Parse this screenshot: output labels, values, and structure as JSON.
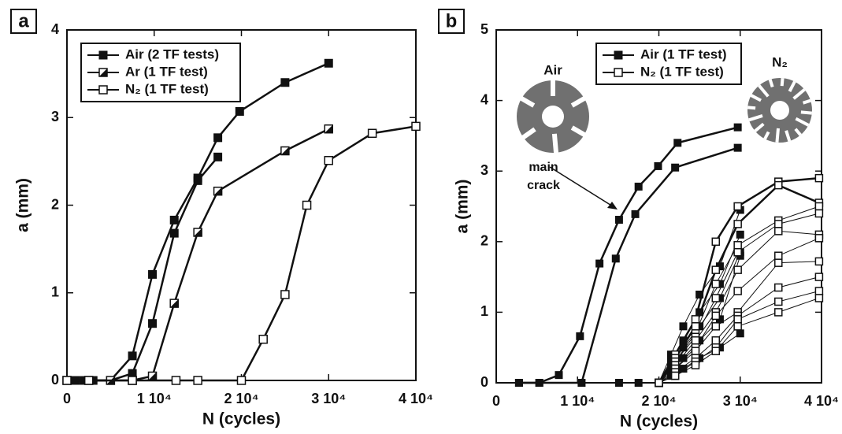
{
  "chart_data": [
    {
      "type": "line",
      "panel_label": "a",
      "xlabel": "N (cycles)",
      "ylabel": "a (mm)",
      "xlim": [
        0,
        40000
      ],
      "ylim": [
        0,
        4
      ],
      "xticks": [
        0,
        {
          "value": 10000,
          "label": "1 10⁴"
        },
        {
          "value": 20000,
          "label": "2 10⁴"
        },
        {
          "value": 30000,
          "label": "3 10⁴"
        },
        {
          "value": 40000,
          "label": "4 10⁴"
        }
      ],
      "yticks": [
        0,
        1,
        2,
        3,
        4
      ],
      "legend": "upper left",
      "series": [
        {
          "name": "Air (2 TF tests)",
          "marker": "filled",
          "color": "#111111",
          "runs": [
            {
              "x": [
                0,
                1000,
                2000,
                3000,
                5000,
                7500,
                9800,
                12300,
                15000,
                17300,
                19800,
                25000,
                30000
              ],
              "values": [
                0,
                0,
                0,
                0,
                0,
                0.28,
                1.21,
                1.83,
                2.31,
                2.77,
                3.07,
                3.4,
                3.62
              ]
            },
            {
              "x": [
                0,
                1000,
                2000,
                5000,
                7500,
                9800,
                12300,
                15000,
                17300
              ],
              "values": [
                0,
                0,
                0,
                0,
                0.08,
                0.65,
                1.68,
                2.28,
                2.55
              ]
            }
          ]
        },
        {
          "name": "Ar (1 TF test)",
          "marker": "half",
          "color": "#111111",
          "runs": [
            {
              "x": [
                0,
                2500,
                5000,
                7500,
                9800,
                12300,
                15000,
                17300,
                25000,
                30000
              ],
              "values": [
                0,
                0,
                0,
                0,
                0.05,
                0.88,
                1.69,
                2.16,
                2.62,
                2.87
              ]
            }
          ]
        },
        {
          "name": "N₂ (1 TF test)",
          "marker": "open",
          "color": "#111111",
          "runs": [
            {
              "x": [
                0,
                2500,
                7500,
                12500,
                15000,
                20000,
                22500,
                25000,
                27500,
                30000,
                35000,
                40000
              ],
              "values": [
                0,
                0,
                0,
                0,
                0,
                0,
                0.47,
                0.98,
                2.0,
                2.51,
                2.82,
                2.9
              ]
            }
          ]
        }
      ]
    },
    {
      "type": "line",
      "panel_label": "b",
      "xlabel": "N (cycles)",
      "ylabel": "a (mm)",
      "xlim": [
        0,
        40000
      ],
      "ylim": [
        0,
        5
      ],
      "xticks": [
        0,
        {
          "value": 10000,
          "label": "1 10⁴"
        },
        {
          "value": 20000,
          "label": "2 10⁴"
        },
        {
          "value": 30000,
          "label": "3 10⁴"
        },
        {
          "value": 40000,
          "label": "4 10⁴"
        }
      ],
      "yticks": [
        0,
        1,
        2,
        3,
        4,
        5
      ],
      "legend": "upper center",
      "annotations": [
        "Air",
        "N₂",
        "main",
        "crack"
      ],
      "series": [
        {
          "name": "Air (1 TF test)",
          "marker": "filled",
          "color": "#111111",
          "runs": [
            {
              "x": [
                2800,
                5300,
                7700,
                10300,
                12700,
                15100,
                17500,
                19900,
                22300,
                29700
              ],
              "values": [
                0,
                0,
                0.11,
                0.66,
                1.69,
                2.31,
                2.78,
                3.07,
                3.4,
                3.62
              ]
            },
            {
              "x": [
                2800,
                5300,
                10500,
                14700,
                17100,
                22000,
                29700
              ],
              "values": [
                0,
                0,
                0,
                1.76,
                2.39,
                3.05,
                3.33
              ]
            },
            {
              "x": [
                15100,
                17500,
                20000,
                21500,
                23000,
                25000,
                27500,
                30000
              ],
              "values": [
                0,
                0,
                0,
                0.4,
                0.8,
                1.25,
                1.65,
                2.45
              ]
            },
            {
              "x": [
                20000,
                21500,
                23000,
                25000,
                27500,
                30000
              ],
              "values": [
                0,
                0.3,
                0.6,
                1.0,
                1.4,
                2.1
              ]
            },
            {
              "x": [
                20000,
                21500,
                23000,
                25000,
                27500,
                30000
              ],
              "values": [
                0,
                0.25,
                0.5,
                0.8,
                1.2,
                1.85
              ]
            },
            {
              "x": [
                20000,
                21500,
                23000,
                25000,
                27500,
                30000
              ],
              "values": [
                0,
                0.2,
                0.35,
                0.6,
                0.9,
                1.8
              ]
            },
            {
              "x": [
                20000,
                21500,
                23000,
                25000,
                27500,
                30000
              ],
              "values": [
                0,
                0.1,
                0.2,
                0.35,
                0.5,
                0.7
              ]
            }
          ]
        },
        {
          "name": "N₂ (1 TF test)",
          "marker": "open",
          "color": "#111111",
          "runs": [
            {
              "x": [
                20000,
                22000,
                24500,
                27000,
                29700,
                34700,
                39700
              ],
              "values": [
                0,
                0.4,
                0.9,
                2.0,
                2.5,
                2.85,
                2.9
              ]
            },
            {
              "x": [
                20000,
                22000,
                24500,
                27000,
                29700,
                34700,
                39700
              ],
              "values": [
                0,
                0.35,
                0.8,
                1.6,
                2.25,
                2.8,
                2.55
              ]
            },
            {
              "x": [
                20000,
                22000,
                24500,
                27000,
                29700,
                34700,
                39700
              ],
              "values": [
                0,
                0.3,
                0.7,
                1.4,
                1.95,
                2.3,
                2.5
              ]
            },
            {
              "x": [
                20000,
                22000,
                24500,
                27000,
                29700,
                34700,
                39700
              ],
              "values": [
                0,
                0.3,
                0.65,
                1.2,
                1.85,
                2.25,
                2.4
              ]
            },
            {
              "x": [
                20000,
                22000,
                24500,
                27000,
                29700,
                34700,
                39700
              ],
              "values": [
                0,
                0.25,
                0.6,
                1.0,
                1.6,
                2.15,
                2.1
              ]
            },
            {
              "x": [
                20000,
                22000,
                24500,
                27000,
                29700,
                34700,
                39700
              ],
              "values": [
                0,
                0.2,
                0.5,
                0.95,
                1.3,
                1.8,
                2.05
              ]
            },
            {
              "x": [
                20000,
                22000,
                24500,
                27000,
                29700,
                34700,
                39700
              ],
              "values": [
                0,
                0.2,
                0.45,
                0.8,
                1.0,
                1.7,
                1.72
              ]
            },
            {
              "x": [
                20000,
                22000,
                24500,
                27000,
                29700,
                34700,
                39700
              ],
              "values": [
                0,
                0.15,
                0.35,
                0.6,
                0.95,
                1.35,
                1.5
              ]
            },
            {
              "x": [
                20000,
                22000,
                24500,
                27000,
                29700,
                34700,
                39700
              ],
              "values": [
                0,
                0.1,
                0.3,
                0.5,
                0.9,
                1.15,
                1.3
              ]
            },
            {
              "x": [
                20000,
                22000,
                24500,
                27000,
                29700,
                34700,
                39700
              ],
              "values": [
                0,
                0.1,
                0.25,
                0.45,
                0.8,
                1.0,
                1.2
              ]
            }
          ]
        }
      ]
    }
  ]
}
